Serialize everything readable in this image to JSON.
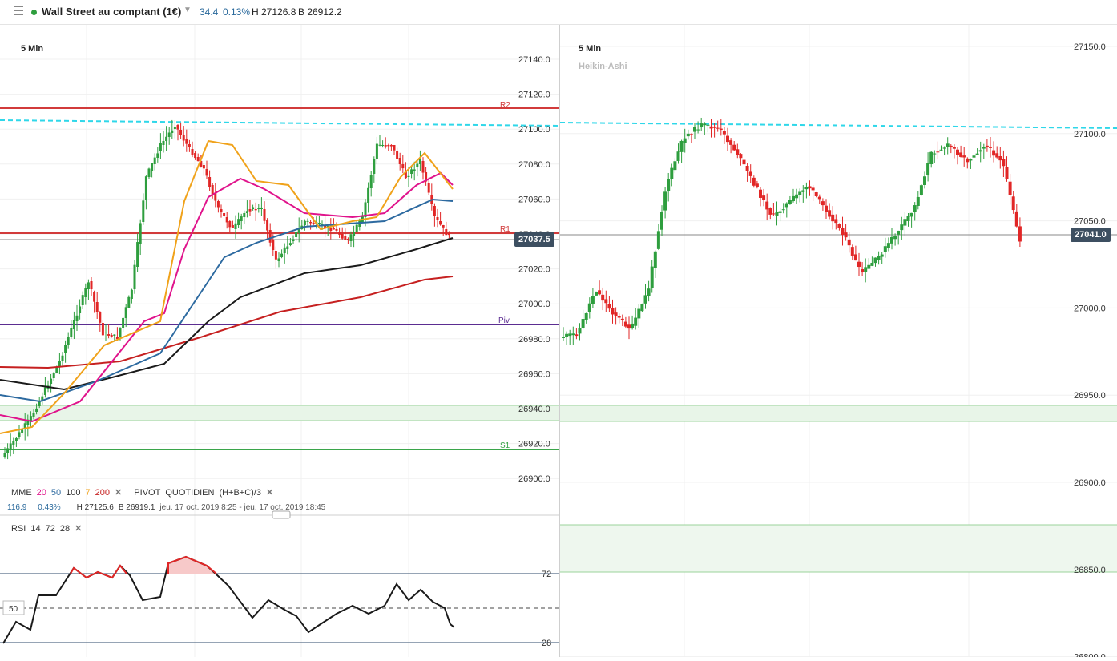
{
  "header": {
    "instrument": "Wall Street au comptant (1€)",
    "change": "34.4",
    "change_pct": "0.13%",
    "high": "H 27126.8",
    "low": "B 26912.2"
  },
  "left_chart": {
    "timeframe": "5 Min",
    "price_axis": [
      "27140.0",
      "27120.0",
      "27100.0",
      "27080.0",
      "27060.0",
      "27040.0",
      "27020.0",
      "27000.0",
      "26980.0",
      "26960.0",
      "26940.0",
      "26920.0",
      "26900.0"
    ],
    "current_price": "27037.5",
    "pivot_labels": {
      "r2": "R2",
      "r1": "R1",
      "piv": "Piv",
      "s1": "S1"
    },
    "indicators_legend": {
      "mme": "MME",
      "p20": "20",
      "p50": "50",
      "p100": "100",
      "p7": "7",
      "p200": "200",
      "pivot": "PIVOT",
      "pivot_type": "QUOTIDIEN",
      "pivot_formula": "(H+B+C)/3",
      "close_icon": "✕"
    },
    "info_line": {
      "value": "116.9",
      "pct": "0.43%",
      "high": "H 27125.6",
      "low": "B 26919.1",
      "range": "jeu. 17 oct. 2019 8:25 - jeu. 17 oct. 2019 18:45"
    },
    "rsi": {
      "label": "RSI",
      "period": "14",
      "upper": "72",
      "lower": "28",
      "mid_label": "50",
      "axis_upper": "72",
      "axis_lower": "28",
      "close_icon": "✕"
    },
    "colors": {
      "up": "#2e9e3e",
      "down": "#e12626",
      "ema20": "#e0148c",
      "ema50": "#2d6aa0",
      "ema100": "#1a1a1a",
      "ema7": "#f0a21a",
      "ema200": "#c62020",
      "pivot": "#5b2d91",
      "resistance": "#d23b3b",
      "support": "#3aa54a",
      "dashed": "#2fd7e9"
    }
  },
  "right_chart": {
    "timeframe": "5 Min",
    "chart_style": "Heikin-Ashi",
    "price_axis": [
      "27150.0",
      "27100.0",
      "27050.0",
      "27000.0",
      "26950.0",
      "26900.0",
      "26850.0",
      "26800.0"
    ],
    "current_price": "27041.0"
  }
}
